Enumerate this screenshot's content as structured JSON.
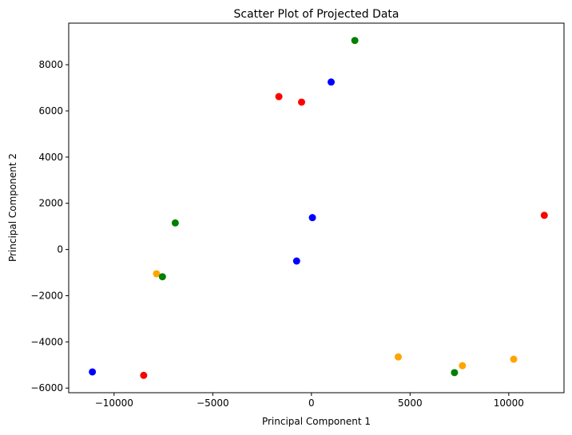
{
  "chart_data": {
    "type": "scatter",
    "title": "Scatter Plot of Projected Data",
    "xlabel": "Principal Component 1",
    "ylabel": "Principal Component 2",
    "xlim": [
      -12300,
      12800
    ],
    "ylim": [
      -6200,
      9800
    ],
    "xticks": [
      -10000,
      -5000,
      0,
      5000,
      10000
    ],
    "xtick_labels": [
      "−10000",
      "−5000",
      "0",
      "5000",
      "10000"
    ],
    "yticks": [
      -6000,
      -4000,
      -2000,
      0,
      2000,
      4000,
      6000,
      8000
    ],
    "ytick_labels": [
      "−6000",
      "−4000",
      "−2000",
      "0",
      "2000",
      "4000",
      "6000",
      "8000"
    ],
    "grid": false,
    "points": [
      {
        "x": 2200,
        "y": 9050,
        "color": "#008000"
      },
      {
        "x": 1000,
        "y": 7250,
        "color": "#0000ff"
      },
      {
        "x": -1650,
        "y": 6620,
        "color": "#ff0000"
      },
      {
        "x": -500,
        "y": 6380,
        "color": "#ff0000"
      },
      {
        "x": 11800,
        "y": 1480,
        "color": "#ff0000"
      },
      {
        "x": 50,
        "y": 1380,
        "color": "#0000ff"
      },
      {
        "x": -6900,
        "y": 1150,
        "color": "#008000"
      },
      {
        "x": -750,
        "y": -500,
        "color": "#0000ff"
      },
      {
        "x": -7850,
        "y": -1050,
        "color": "#ffa500"
      },
      {
        "x": -7550,
        "y": -1180,
        "color": "#008000"
      },
      {
        "x": 4400,
        "y": -4650,
        "color": "#ffa500"
      },
      {
        "x": 10250,
        "y": -4750,
        "color": "#ffa500"
      },
      {
        "x": 7650,
        "y": -5030,
        "color": "#ffa500"
      },
      {
        "x": 7250,
        "y": -5330,
        "color": "#008000"
      },
      {
        "x": -11100,
        "y": -5300,
        "color": "#0000ff"
      },
      {
        "x": -8500,
        "y": -5450,
        "color": "#ff0000"
      }
    ]
  }
}
